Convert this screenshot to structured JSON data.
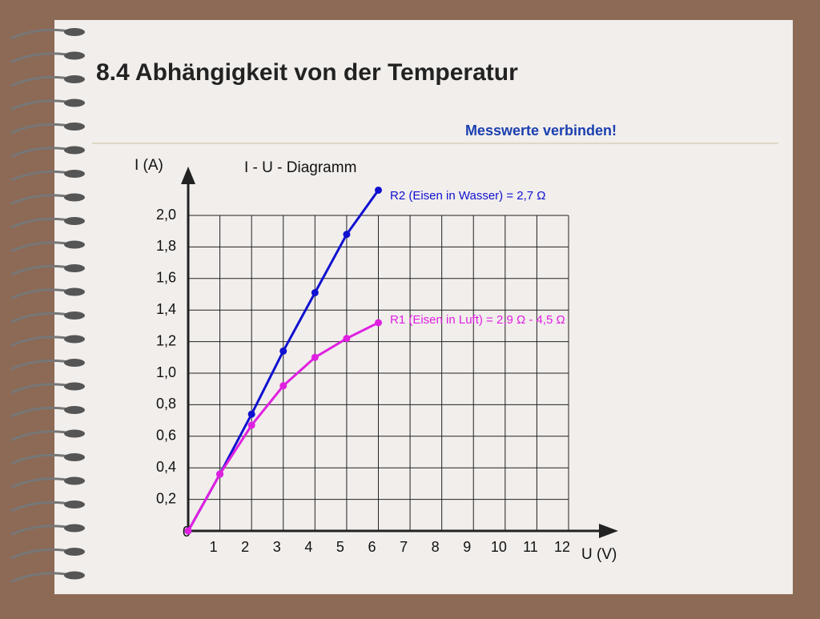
{
  "header": {
    "title": "8.4 Abhängigkeit von der Temperatur",
    "note": "Messwerte verbinden!"
  },
  "chart_data": {
    "type": "line",
    "title": "I - U - Diagramm",
    "x_label": "U (V)",
    "y_label": "I (A)",
    "x": [
      0,
      1,
      2,
      3,
      4,
      5,
      6
    ],
    "series": [
      {
        "name": "R2 (Eisen in Wasser) = 2,7 Ω",
        "color": "#1010d0",
        "values": [
          0,
          0.36,
          0.74,
          1.14,
          1.51,
          1.88,
          2.16
        ]
      },
      {
        "name": "R1 (Eisen in Luft) = 2,9 Ω - 4,5 Ω",
        "color": "#e020e0",
        "values": [
          0,
          0.36,
          0.67,
          0.92,
          1.1,
          1.22,
          1.32
        ]
      }
    ],
    "xlim": [
      0,
      12
    ],
    "ylim": [
      0,
      2.0
    ],
    "xticks": [
      1,
      2,
      3,
      4,
      5,
      6,
      7,
      8,
      9,
      10,
      11,
      12
    ],
    "yticks": [
      {
        "value": 0,
        "label": "0"
      },
      {
        "value": 0.2,
        "label": "0,2"
      },
      {
        "value": 0.4,
        "label": "0,4"
      },
      {
        "value": 0.6,
        "label": "0,6"
      },
      {
        "value": 0.8,
        "label": "0,8"
      },
      {
        "value": 1.0,
        "label": "1,0"
      },
      {
        "value": 1.2,
        "label": "1,2"
      },
      {
        "value": 1.4,
        "label": "1,4"
      },
      {
        "value": 1.6,
        "label": "1,6"
      },
      {
        "value": 1.8,
        "label": "1,8"
      },
      {
        "value": 2.0,
        "label": "2,0"
      }
    ],
    "grid": true
  }
}
